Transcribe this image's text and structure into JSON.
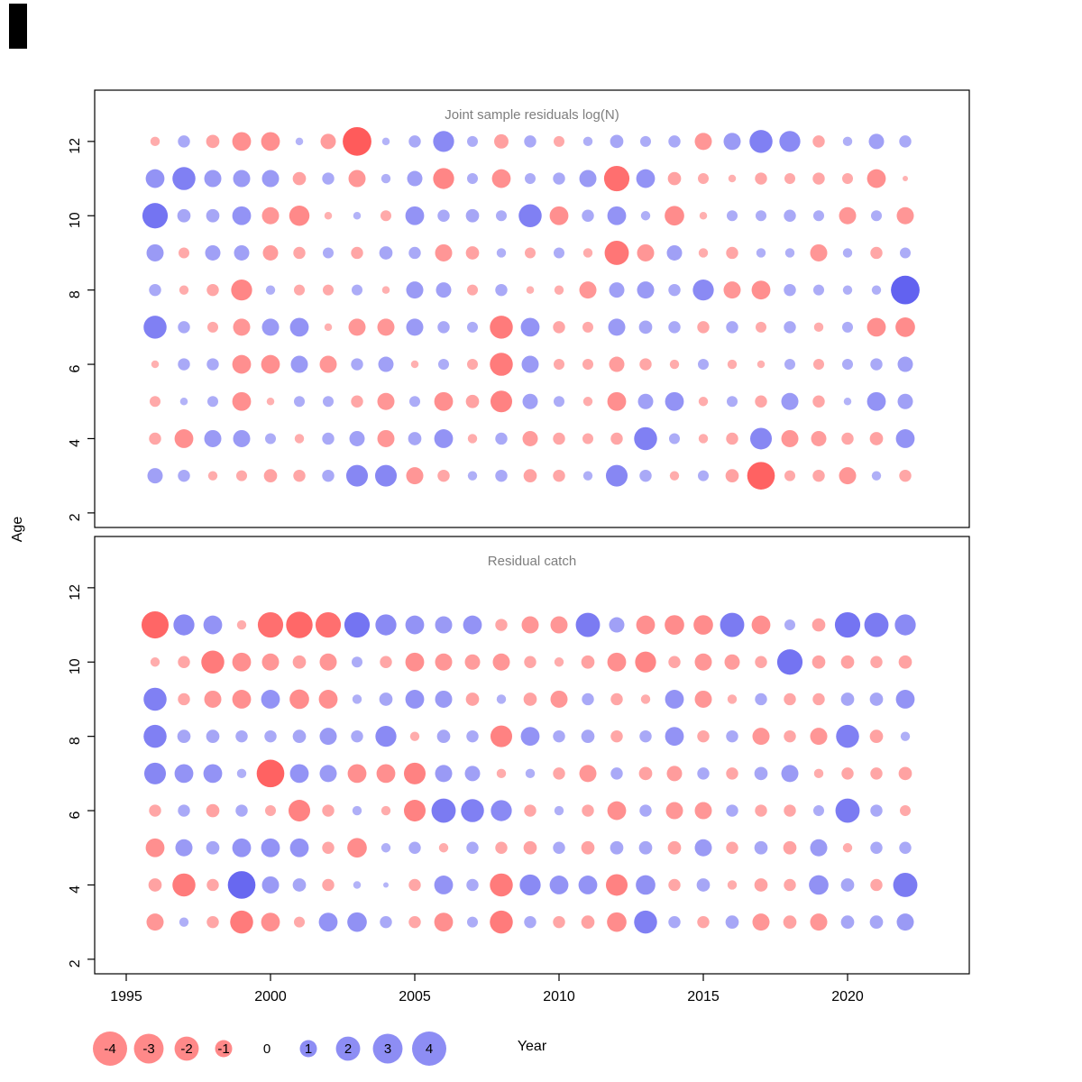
{
  "figure": {
    "panel1_title": "Joint sample residuals log(N)",
    "panel2_title": "Residual catch"
  },
  "axis": {
    "xlabel": "Year",
    "ylabel": "Age",
    "x_ticks": [
      1995,
      2000,
      2005,
      2010,
      2015,
      2020
    ],
    "y_ticks": [
      2,
      4,
      6,
      8,
      10,
      12
    ],
    "xlim": [
      1993.9,
      2024.1
    ],
    "ylim": [
      1.6,
      13.4
    ]
  },
  "legend": {
    "values": [
      -4,
      -3,
      -2,
      -1,
      0,
      1,
      2,
      3,
      4
    ],
    "negative_color": "#FF2828",
    "positive_color": "#3030EB",
    "note": "bubble area proportional to |residual|; red = negative, blue = positive"
  },
  "colors": {
    "negative": "#FF2828",
    "positive": "#3030EB",
    "title_gray": "#7E7E7E",
    "axis_black": "#000000",
    "background": "#FFFFFF"
  },
  "chart_data": [
    {
      "type": "bubble",
      "title": "Joint sample residuals log(N)",
      "xlabel": "Year",
      "ylabel": "Age",
      "years": [
        1996,
        1997,
        1998,
        1999,
        2000,
        2001,
        2002,
        2003,
        2004,
        2005,
        2006,
        2007,
        2008,
        2009,
        2010,
        2011,
        2012,
        2013,
        2014,
        2015,
        2016,
        2017,
        2018,
        2019,
        2020,
        2021,
        2022
      ],
      "ages": [
        12,
        11,
        10,
        9,
        8,
        7,
        6,
        5,
        4,
        3
      ],
      "values": [
        [
          -0.3,
          0.5,
          -0.6,
          -1.2,
          -1.2,
          0.2,
          -0.8,
          -2.8,
          0.2,
          0.5,
          1.5,
          0.4,
          -0.7,
          0.5,
          -0.4,
          0.3,
          0.6,
          0.4,
          0.5,
          -1.0,
          1.0,
          1.8,
          1.5,
          -0.5,
          0.3,
          0.8,
          0.5
        ],
        [
          1.2,
          1.8,
          1.0,
          1.0,
          1.0,
          -0.6,
          0.5,
          -1.0,
          0.3,
          0.8,
          -1.5,
          0.4,
          -1.2,
          0.4,
          0.5,
          1.0,
          -2.2,
          1.2,
          -0.6,
          -0.4,
          -0.2,
          -0.5,
          -0.4,
          -0.5,
          -0.4,
          -1.2,
          -0.1
        ],
        [
          2.2,
          0.6,
          0.6,
          1.2,
          -1.0,
          -1.4,
          -0.2,
          0.2,
          -0.4,
          1.2,
          0.5,
          0.6,
          0.4,
          1.8,
          -1.2,
          0.5,
          1.2,
          0.3,
          -1.3,
          -0.2,
          0.4,
          0.4,
          0.5,
          0.4,
          -1.0,
          0.4,
          -1.0
        ],
        [
          1.0,
          -0.4,
          0.8,
          0.8,
          -0.8,
          -0.5,
          0.4,
          -0.5,
          0.6,
          0.5,
          -1.0,
          -0.6,
          0.3,
          -0.4,
          0.4,
          -0.3,
          -2.0,
          -1.0,
          0.8,
          -0.3,
          -0.5,
          0.3,
          0.3,
          -1.0,
          0.3,
          -0.5,
          0.4
        ],
        [
          0.5,
          -0.3,
          -0.5,
          -1.5,
          0.3,
          -0.4,
          -0.4,
          0.4,
          -0.2,
          1.0,
          0.8,
          -0.4,
          0.5,
          -0.2,
          -0.3,
          -1.0,
          0.8,
          1.0,
          0.5,
          1.5,
          -1.0,
          -1.2,
          0.5,
          0.4,
          0.3,
          0.3,
          2.8
        ],
        [
          1.8,
          0.5,
          -0.4,
          -1.0,
          1.0,
          1.2,
          -0.2,
          -1.0,
          -1.0,
          1.0,
          0.5,
          0.4,
          -1.8,
          1.2,
          -0.5,
          -0.4,
          1.0,
          0.6,
          0.5,
          -0.5,
          0.5,
          -0.4,
          0.5,
          -0.3,
          0.4,
          -1.2,
          -1.3
        ],
        [
          -0.2,
          0.5,
          0.5,
          -1.2,
          -1.2,
          1.0,
          -1.0,
          0.5,
          0.8,
          -0.2,
          0.4,
          -0.4,
          -1.8,
          1.0,
          -0.4,
          -0.4,
          -0.8,
          -0.5,
          -0.3,
          0.4,
          -0.3,
          -0.2,
          0.4,
          -0.4,
          0.4,
          0.5,
          0.8
        ],
        [
          -0.4,
          0.2,
          0.4,
          -1.2,
          -0.2,
          0.4,
          0.4,
          -0.5,
          -1.0,
          0.4,
          -1.2,
          -0.6,
          -1.6,
          0.8,
          0.4,
          -0.3,
          -1.2,
          0.8,
          1.2,
          -0.3,
          0.4,
          -0.5,
          1.0,
          -0.5,
          0.2,
          1.2,
          0.8
        ],
        [
          -0.5,
          -1.2,
          1.0,
          1.0,
          0.4,
          -0.3,
          0.5,
          0.8,
          -1.0,
          0.6,
          1.2,
          -0.3,
          0.5,
          -0.8,
          -0.5,
          -0.4,
          -0.5,
          1.8,
          0.4,
          -0.3,
          -0.5,
          1.6,
          -1.0,
          -0.8,
          -0.5,
          -0.6,
          1.2
        ],
        [
          0.8,
          0.5,
          -0.3,
          -0.4,
          -0.6,
          -0.5,
          0.5,
          1.6,
          1.6,
          -1.0,
          -0.5,
          0.3,
          0.5,
          -0.6,
          -0.5,
          0.3,
          1.6,
          0.5,
          -0.3,
          0.4,
          -0.6,
          -2.6,
          -0.4,
          -0.5,
          -1.0,
          0.3,
          -0.5
        ]
      ]
    },
    {
      "type": "bubble",
      "title": "Residual catch",
      "xlabel": "Year",
      "ylabel": "Age",
      "years": [
        1996,
        1997,
        1998,
        1999,
        2000,
        2001,
        2002,
        2003,
        2004,
        2005,
        2006,
        2007,
        2008,
        2009,
        2010,
        2011,
        2012,
        2013,
        2014,
        2015,
        2016,
        2017,
        2018,
        2019,
        2020,
        2021,
        2022
      ],
      "ages": [
        11,
        10,
        9,
        8,
        7,
        6,
        5,
        4,
        3
      ],
      "values": [
        [
          -2.5,
          1.5,
          1.2,
          -0.3,
          -2.2,
          -2.4,
          -2.2,
          2.2,
          1.5,
          1.2,
          1.0,
          1.2,
          -0.5,
          -1.0,
          -1.0,
          2.0,
          0.8,
          -1.2,
          -1.3,
          -1.3,
          2.0,
          -1.2,
          0.4,
          -0.6,
          2.2,
          2.0,
          1.5
        ],
        [
          -0.3,
          -0.5,
          -1.8,
          -1.2,
          -1.0,
          -0.6,
          -1.0,
          0.4,
          -0.5,
          -1.2,
          -1.0,
          -0.8,
          -1.0,
          -0.5,
          -0.3,
          -0.6,
          -1.2,
          -1.5,
          -0.5,
          -1.0,
          -0.8,
          -0.5,
          2.2,
          -0.6,
          -0.6,
          -0.5,
          -0.6
        ],
        [
          1.8,
          -0.5,
          -1.0,
          -1.2,
          1.2,
          -1.3,
          -1.2,
          0.3,
          0.6,
          1.2,
          1.0,
          -0.6,
          0.3,
          -0.6,
          -1.0,
          0.5,
          -0.5,
          -0.3,
          1.2,
          -1.0,
          -0.3,
          0.5,
          -0.5,
          -0.5,
          0.6,
          0.6,
          1.2
        ],
        [
          1.8,
          0.6,
          0.6,
          0.5,
          0.5,
          0.6,
          1.0,
          0.5,
          1.5,
          -0.3,
          0.6,
          0.5,
          -1.6,
          1.2,
          0.5,
          0.6,
          -0.5,
          0.5,
          1.2,
          -0.5,
          0.5,
          -1.0,
          -0.5,
          -1.0,
          1.8,
          -0.6,
          0.3
        ],
        [
          1.6,
          1.2,
          1.2,
          0.3,
          -2.6,
          1.2,
          1.0,
          -1.2,
          -1.2,
          -1.6,
          1.0,
          0.8,
          -0.3,
          0.3,
          -0.5,
          -1.0,
          0.5,
          -0.6,
          -0.8,
          0.5,
          -0.5,
          0.6,
          1.0,
          -0.3,
          -0.5,
          -0.5,
          -0.6
        ],
        [
          -0.5,
          0.5,
          -0.6,
          0.5,
          -0.4,
          -1.6,
          -0.5,
          0.3,
          -0.3,
          -1.6,
          2.0,
          1.8,
          1.5,
          -0.5,
          0.3,
          -0.5,
          -1.2,
          0.5,
          -1.0,
          -1.0,
          0.5,
          -0.5,
          -0.5,
          0.4,
          2.0,
          0.5,
          -0.4
        ],
        [
          -1.2,
          1.0,
          0.6,
          1.2,
          1.2,
          1.2,
          -0.5,
          -1.3,
          0.3,
          0.5,
          -0.3,
          0.5,
          -0.5,
          -0.6,
          0.5,
          -0.6,
          0.6,
          0.6,
          -0.6,
          1.0,
          -0.5,
          0.6,
          -0.6,
          1.0,
          -0.3,
          0.5,
          0.5
        ],
        [
          -0.6,
          -1.8,
          -0.5,
          2.6,
          1.0,
          0.6,
          -0.5,
          0.2,
          0.1,
          -0.5,
          1.2,
          0.5,
          -1.8,
          1.5,
          1.2,
          1.2,
          -1.6,
          1.3,
          -0.5,
          0.6,
          -0.3,
          -0.6,
          -0.5,
          1.3,
          0.6,
          -0.5,
          2.0
        ],
        [
          -1.0,
          0.3,
          -0.5,
          -1.8,
          -1.2,
          -0.4,
          1.2,
          1.3,
          0.5,
          -0.5,
          -1.2,
          0.4,
          -1.8,
          0.5,
          -0.5,
          -0.6,
          -1.3,
          1.8,
          0.5,
          -0.5,
          0.6,
          -1.0,
          -0.6,
          -1.0,
          0.6,
          0.6,
          1.0
        ]
      ]
    }
  ]
}
